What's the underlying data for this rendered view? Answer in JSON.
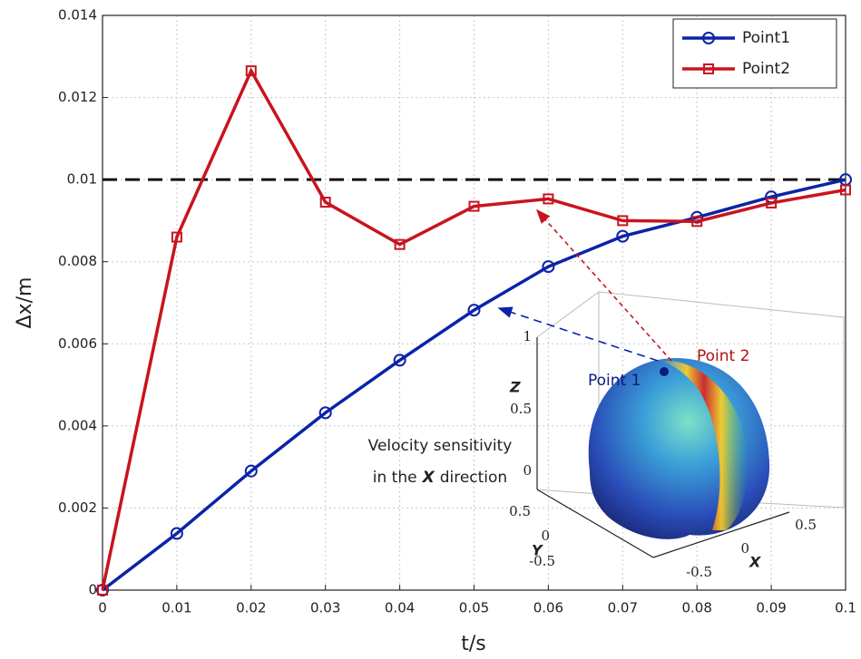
{
  "chart_data": {
    "type": "line",
    "x_label": "t/s",
    "y_label": "Δx/m",
    "x": [
      0,
      0.01,
      0.02,
      0.03,
      0.04,
      0.05,
      0.06,
      0.07,
      0.08,
      0.09,
      0.1
    ],
    "series": [
      {
        "name": "Point1",
        "color": "#0a23a8",
        "marker": "circle",
        "values": [
          0,
          0.00138,
          0.0029,
          0.00432,
          0.0056,
          0.00682,
          0.00788,
          0.00862,
          0.00908,
          0.00958,
          0.01
        ]
      },
      {
        "name": "Point2",
        "color": "#c8141e",
        "marker": "square",
        "values": [
          0,
          0.0086,
          0.01265,
          0.00945,
          0.00842,
          0.00935,
          0.00953,
          0.009,
          0.00898,
          0.00943,
          0.00975
        ]
      }
    ],
    "reference_line": 0.01,
    "xlim": [
      0,
      0.1
    ],
    "ylim": [
      0,
      0.014
    ],
    "xticks": [
      0,
      0.01,
      0.02,
      0.03,
      0.04,
      0.05,
      0.06,
      0.07,
      0.08,
      0.09,
      0.1
    ],
    "yticks": [
      0,
      0.002,
      0.004,
      0.006,
      0.008,
      0.01,
      0.012,
      0.014
    ],
    "grid": true,
    "legend": "upper right",
    "annotation": {
      "line1": "Velocity sensitivity",
      "line2_pre": "in the",
      "line2_em": "X",
      "line2_post": "direction"
    },
    "inset": {
      "point1_label": "Point 1",
      "point2_label": "Point 2",
      "z_label": "Z",
      "y_label": "Y",
      "x_label": "X",
      "z_ticks": [
        0,
        0.5,
        1
      ],
      "y_ticks": [
        -0.5,
        0,
        0.5
      ],
      "x_ticks": [
        -0.5,
        0,
        0.5
      ]
    }
  }
}
